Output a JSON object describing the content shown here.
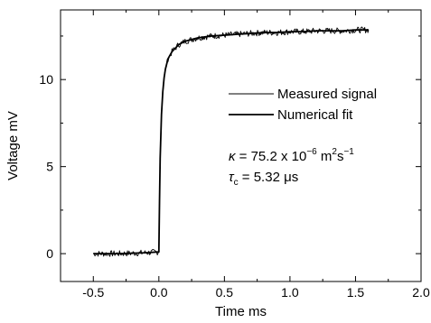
{
  "chart_data": {
    "type": "line",
    "title": "",
    "xlabel": "Time ms",
    "ylabel": "Voltage mV",
    "xlim": [
      -0.75,
      2.0
    ],
    "ylim": [
      -1.6,
      14.0
    ],
    "xticks": [
      -0.5,
      0.0,
      0.5,
      1.0,
      1.5,
      2.0
    ],
    "xtick_labels": [
      "-0.5",
      "0.0",
      "0.5",
      "1.0",
      "1.5",
      "2.0"
    ],
    "yticks": [
      0,
      5,
      10
    ],
    "ytick_labels": [
      "0",
      "5",
      "10"
    ],
    "grid": false,
    "legend_position": "right",
    "series": [
      {
        "name": "Measured signal",
        "line_width": "thin",
        "noisy": true,
        "x": [
          -0.5,
          -0.3,
          -0.1,
          0.0,
          0.005,
          0.01,
          0.02,
          0.03,
          0.04,
          0.05,
          0.07,
          0.1,
          0.15,
          0.2,
          0.25,
          0.3,
          0.4,
          0.5,
          0.6,
          0.7,
          0.8,
          0.9,
          1.0,
          1.1,
          1.2,
          1.3,
          1.4,
          1.5,
          1.6
        ],
        "values": [
          0.0,
          0.0,
          0.05,
          0.1,
          3.0,
          5.5,
          8.0,
          9.3,
          10.1,
          10.6,
          11.2,
          11.6,
          12.0,
          12.2,
          12.3,
          12.4,
          12.5,
          12.55,
          12.6,
          12.65,
          12.7,
          12.7,
          12.75,
          12.75,
          12.8,
          12.8,
          12.8,
          12.85,
          12.85
        ]
      },
      {
        "name": "Numerical fit",
        "line_width": "thick",
        "noisy": false,
        "x": [
          -0.5,
          -0.3,
          -0.1,
          0.0,
          0.005,
          0.01,
          0.02,
          0.03,
          0.04,
          0.05,
          0.07,
          0.1,
          0.15,
          0.2,
          0.25,
          0.3,
          0.4,
          0.5,
          0.6,
          0.7,
          0.8,
          0.9,
          1.0,
          1.1,
          1.2,
          1.3,
          1.4,
          1.5,
          1.6
        ],
        "values": [
          0.0,
          0.0,
          0.05,
          0.1,
          3.0,
          5.5,
          8.0,
          9.3,
          10.1,
          10.6,
          11.2,
          11.6,
          12.0,
          12.2,
          12.3,
          12.4,
          12.5,
          12.55,
          12.6,
          12.65,
          12.7,
          12.7,
          12.75,
          12.75,
          12.8,
          12.8,
          12.8,
          12.85,
          12.85
        ]
      }
    ],
    "annotations": {
      "kappa": {
        "symbol": "κ",
        "text": " = 75.2 x 10",
        "exp1": "−6",
        "unit": " m",
        "exp2": "2",
        "unit2": "s",
        "exp3": "−1"
      },
      "tau": {
        "symbol": "τ",
        "sub": "c",
        "text": " = 5.32 μs"
      }
    }
  }
}
